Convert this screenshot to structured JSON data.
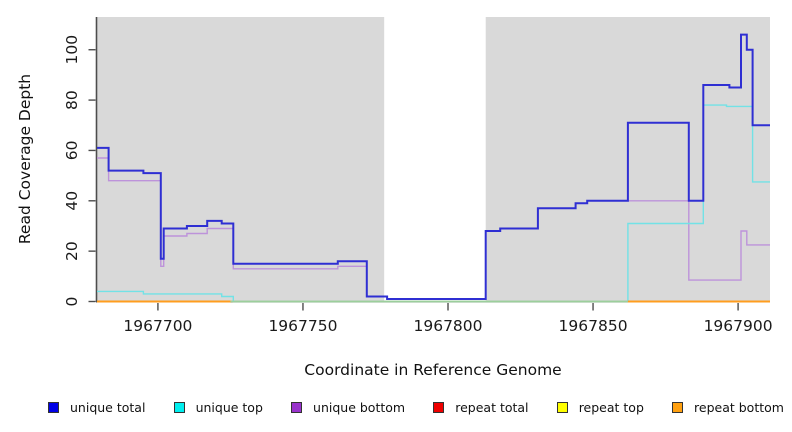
{
  "chart_data": {
    "type": "line",
    "subtype": "step-coverage",
    "title": "",
    "xlabel": "Coordinate in Reference Genome",
    "ylabel": "Read Coverage Depth",
    "xlim": [
      1967679,
      1967911
    ],
    "ylim": [
      0,
      113
    ],
    "x_ticks": [
      1967700,
      1967750,
      1967800,
      1967850,
      1967900
    ],
    "y_ticks": [
      0,
      20,
      40,
      60,
      80,
      100
    ],
    "grid": false,
    "plot_bg_color": "#d9d9d9",
    "axis_color": "#4d4d4d",
    "tick_label_color": "#1a1a1a",
    "masked_region": {
      "x_start": 1967778,
      "x_end": 1967813,
      "color": "#ffffff"
    },
    "series": [
      {
        "name": "unique total",
        "color": "#2f2fd3",
        "stroke_width": 2,
        "steps": [
          [
            1967679,
            61
          ],
          [
            1967683,
            52
          ],
          [
            1967695,
            51
          ],
          [
            1967701,
            17
          ],
          [
            1967702,
            29
          ],
          [
            1967710,
            30
          ],
          [
            1967717,
            32
          ],
          [
            1967722,
            31
          ],
          [
            1967726,
            15
          ],
          [
            1967762,
            16
          ],
          [
            1967772,
            2
          ],
          [
            1967779,
            1
          ],
          [
            1967813,
            28
          ],
          [
            1967818,
            29
          ],
          [
            1967831,
            37
          ],
          [
            1967844,
            39
          ],
          [
            1967848,
            40
          ],
          [
            1967862,
            71
          ],
          [
            1967883,
            40
          ],
          [
            1967888,
            86
          ],
          [
            1967897,
            85
          ],
          [
            1967901,
            106
          ],
          [
            1967903,
            100
          ],
          [
            1967905,
            70
          ]
        ]
      },
      {
        "name": "unique top",
        "color": "#72e2e6",
        "stroke_width": 1.4,
        "steps": [
          [
            1967679,
            4
          ],
          [
            1967695,
            3
          ],
          [
            1967722,
            2
          ],
          [
            1967726,
            0
          ],
          [
            1967862,
            31
          ],
          [
            1967888,
            78
          ],
          [
            1967896,
            77.5
          ],
          [
            1967905,
            47.5
          ]
        ]
      },
      {
        "name": "unique bottom",
        "color": "#bd93da",
        "stroke_width": 1.4,
        "steps": [
          [
            1967679,
            57
          ],
          [
            1967683,
            48
          ],
          [
            1967701,
            14
          ],
          [
            1967702,
            26
          ],
          [
            1967710,
            27
          ],
          [
            1967717,
            29
          ],
          [
            1967726,
            13
          ],
          [
            1967762,
            14
          ],
          [
            1967772,
            2
          ],
          [
            1967779,
            1
          ],
          [
            1967813,
            28
          ],
          [
            1967818,
            29
          ],
          [
            1967831,
            37
          ],
          [
            1967844,
            39
          ],
          [
            1967848,
            40
          ],
          [
            1967883,
            8.5
          ],
          [
            1967901,
            28
          ],
          [
            1967903,
            22.5
          ]
        ]
      },
      {
        "name": "repeat total",
        "color": "#dd0000",
        "stroke_width": 1.2,
        "steps": [
          [
            1967679,
            0
          ]
        ]
      },
      {
        "name": "repeat top",
        "color": "#ffff00",
        "stroke_width": 1.2,
        "steps": [
          [
            1967679,
            0
          ]
        ]
      },
      {
        "name": "repeat bottom",
        "color": "#ff9d1e",
        "stroke_width": 2,
        "steps": [
          [
            1967679,
            0
          ]
        ]
      }
    ],
    "baseline_segments": [
      {
        "x_start": 1967679,
        "x_end": 1967725,
        "color": "#ff9d1e",
        "stroke_width": 2
      },
      {
        "x_start": 1967725,
        "x_end": 1967862,
        "color": "#9ccf9c",
        "stroke_width": 1.6
      },
      {
        "x_start": 1967862,
        "x_end": 1967911,
        "color": "#ff9d1e",
        "stroke_width": 2
      }
    ]
  },
  "legend": {
    "items": [
      {
        "label": "unique total",
        "color": "#0000e6"
      },
      {
        "label": "unique top",
        "color": "#00eeee"
      },
      {
        "label": "unique bottom",
        "color": "#9933cc"
      },
      {
        "label": "repeat total",
        "color": "#ee0000"
      },
      {
        "label": "repeat top",
        "color": "#ffff00"
      },
      {
        "label": "repeat bottom",
        "color": "#ffa010"
      }
    ]
  }
}
